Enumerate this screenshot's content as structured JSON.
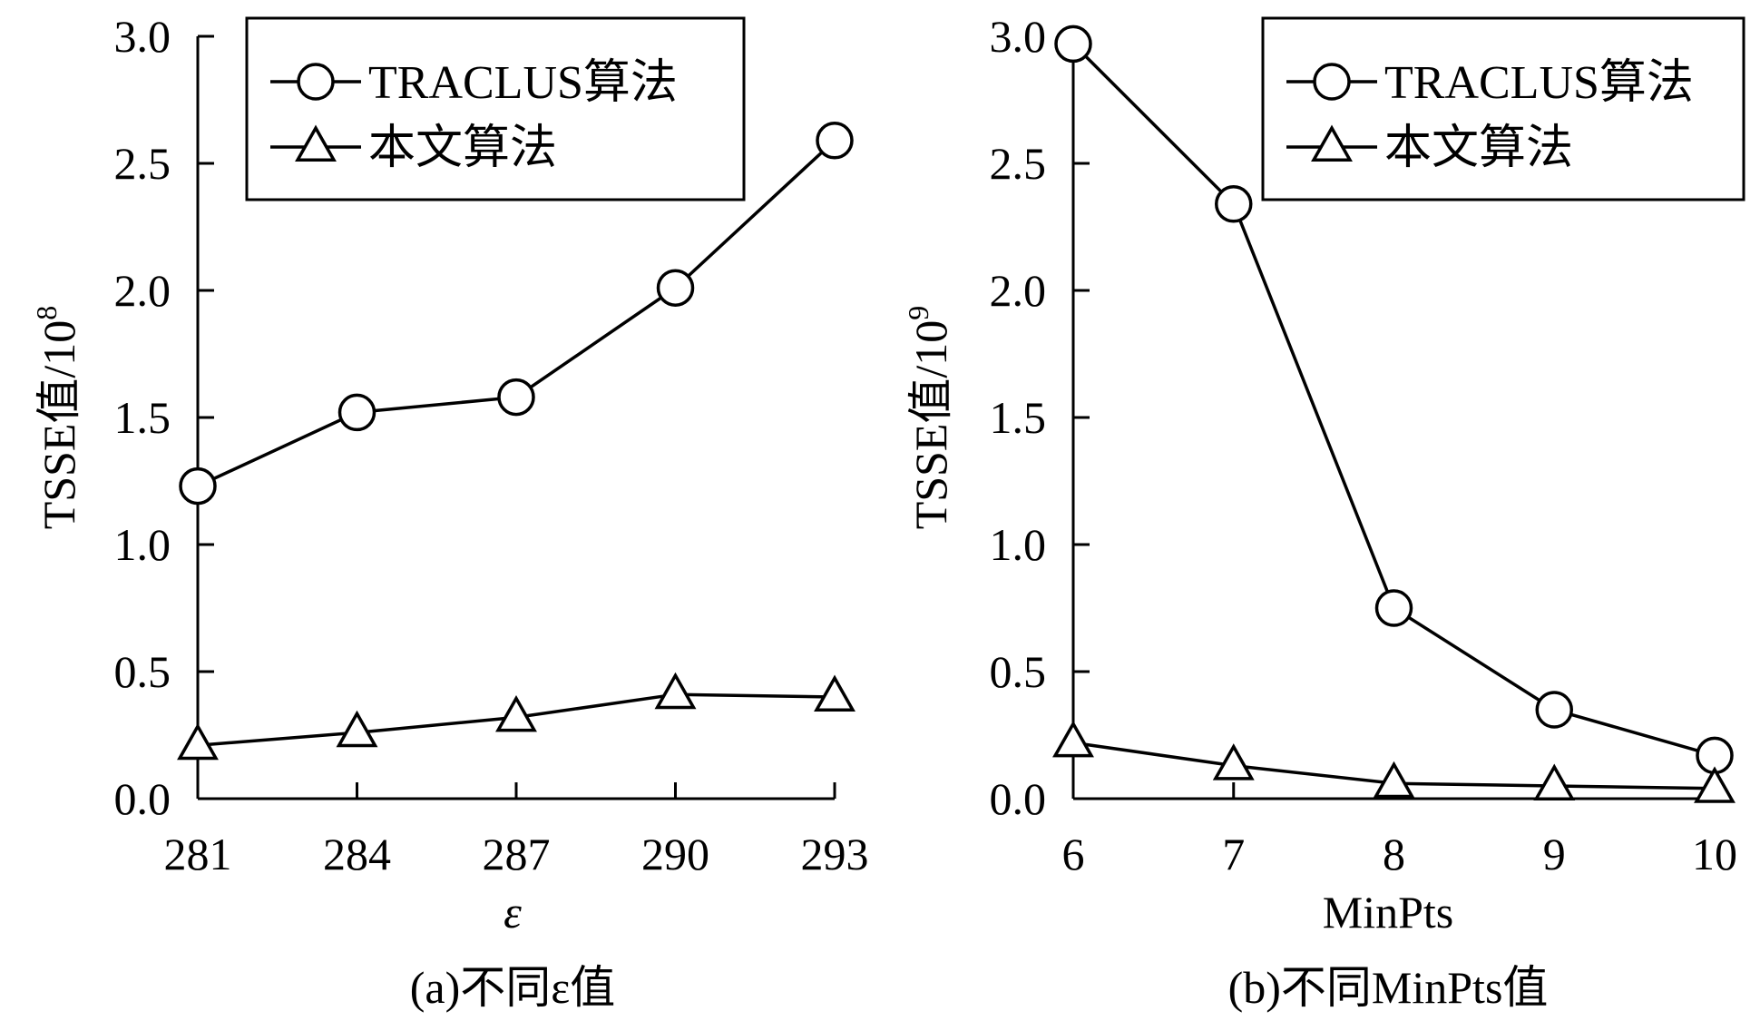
{
  "chart_data": [
    {
      "type": "line",
      "caption": "(a)不同ε值",
      "xlabel": "ε",
      "ylabel": "TSSE值/10",
      "ylabel_exp": "8",
      "categories": [
        "281",
        "284",
        "287",
        "290",
        "293"
      ],
      "ylim": [
        0,
        3.0
      ],
      "yticks": [
        "0.0",
        "0.5",
        "1.0",
        "1.5",
        "2.0",
        "2.5",
        "3.0"
      ],
      "legend_position": "top-right",
      "series": [
        {
          "name": "TRACLUS算法",
          "marker": "circle",
          "values": [
            1.23,
            1.52,
            1.58,
            2.01,
            2.59
          ]
        },
        {
          "name": "本文算法",
          "marker": "triangle",
          "values": [
            0.21,
            0.26,
            0.32,
            0.41,
            0.4
          ]
        }
      ]
    },
    {
      "type": "line",
      "caption": "(b)不同MinPts值",
      "xlabel": "MinPts",
      "ylabel": "TSSE值/10",
      "ylabel_exp": "9",
      "categories": [
        "6",
        "7",
        "8",
        "9",
        "10"
      ],
      "ylim": [
        0,
        3.0
      ],
      "yticks": [
        "0.0",
        "0.5",
        "1.0",
        "1.5",
        "2.0",
        "2.5",
        "3.0"
      ],
      "legend_position": "top-right",
      "series": [
        {
          "name": "TRACLUS算法",
          "marker": "circle",
          "values": [
            2.97,
            2.34,
            0.75,
            0.35,
            0.17
          ]
        },
        {
          "name": "本文算法",
          "marker": "triangle",
          "values": [
            0.22,
            0.13,
            0.06,
            0.05,
            0.04
          ]
        }
      ]
    }
  ]
}
